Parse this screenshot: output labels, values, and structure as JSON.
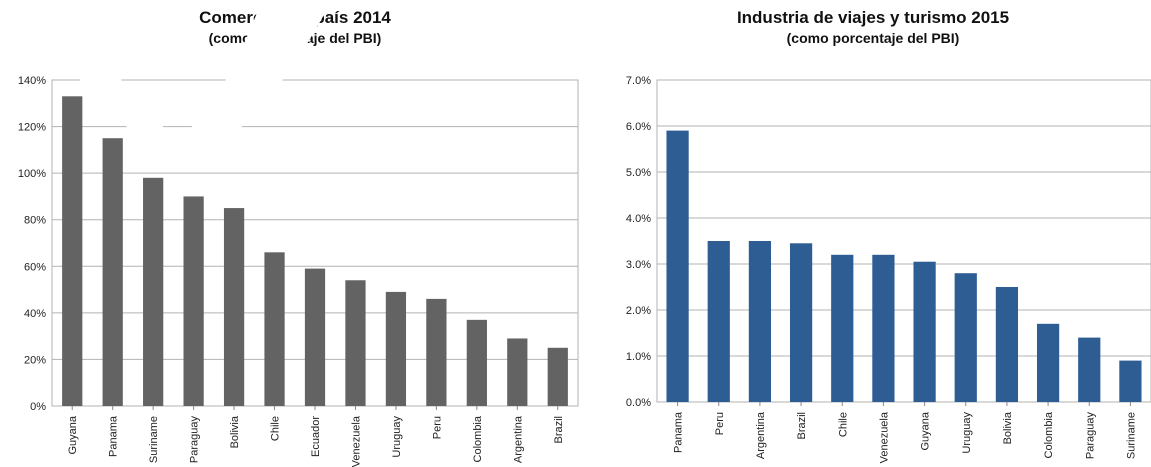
{
  "chart_data": [
    {
      "type": "bar",
      "title": "Comercio por país 2014",
      "subtitle": "(como porcentaje del PBI)",
      "categories": [
        "Guyana",
        "Panama",
        "Suriname",
        "Paraguay",
        "Bolivia",
        "Chile",
        "Ecuador",
        "Venezuela",
        "Uruguay",
        "Peru",
        "Colombia",
        "Argentina",
        "Brazil"
      ],
      "values": [
        133,
        115,
        98,
        90,
        85,
        66,
        59,
        54,
        49,
        46,
        37,
        29,
        25
      ],
      "ylim": [
        0,
        140
      ],
      "yticks": [
        "0%",
        "20%",
        "40%",
        "60%",
        "80%",
        "100%",
        "120%",
        "140%"
      ],
      "grid": true,
      "color": "#636363"
    },
    {
      "type": "bar",
      "title": "Industria de viajes y turismo 2015",
      "subtitle": "(como porcentaje del PBI)",
      "categories": [
        "Panama",
        "Peru",
        "Argentina",
        "Brazil",
        "Chile",
        "Venezuela",
        "Guyana",
        "Uruguay",
        "Bolivia",
        "Colombia",
        "Paraguay",
        "Suriname"
      ],
      "values": [
        5.9,
        3.5,
        3.5,
        3.45,
        3.2,
        3.2,
        3.05,
        2.8,
        2.5,
        1.7,
        1.4,
        0.9
      ],
      "ylim": [
        0,
        7
      ],
      "yticks": [
        "0.0%",
        "1.0%",
        "2.0%",
        "3.0%",
        "4.0%",
        "5.0%",
        "6.0%",
        "7.0%"
      ],
      "grid": true,
      "color": "#2e5d94"
    }
  ]
}
